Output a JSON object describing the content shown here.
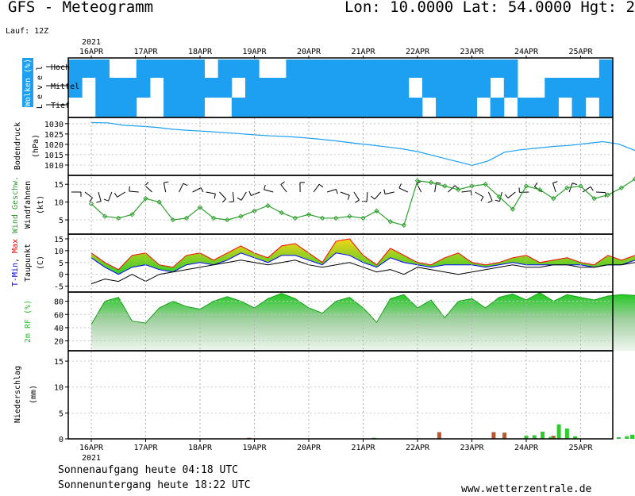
{
  "header": {
    "title": "GFS - Meteogramm",
    "coords": "Lon: 10.0000 Lat: 54.0000 Hgt: 2",
    "run": "Lauf: 12Z"
  },
  "footer": {
    "sunrise": "Sonnenaufgang heute 04:18 UTC",
    "sunset": "Sonnenuntergang heute 18:22 UTC",
    "site": "www.wetterzentrale.de"
  },
  "colors": {
    "cloud": "#1da0f2",
    "pressure_line": "#1da0f2",
    "wind_speed": "#2ca02c",
    "t_min": "#0000ff",
    "t_max": "#ff0000",
    "temp_fill_top": "#f5d318",
    "temp_fill_bottom": "#2ecc2e",
    "dewpoint": "#000000",
    "humidity": "#1ec81e",
    "precip_rain": "#2ecc2e",
    "precip_conv": "#c0552c"
  },
  "chart_data": [
    {
      "type": "heatmap",
      "label": "Wolken (%)",
      "sublabel": "L e v e l",
      "rows": [
        "Hoch",
        "Mittel",
        "Tief"
      ],
      "x": [
        "16APR",
        "16APR",
        "16APR",
        "16APR",
        "17APR",
        "17APR",
        "17APR",
        "17APR",
        "18APR",
        "18APR",
        "18APR",
        "18APR",
        "19APR",
        "19APR",
        "19APR",
        "19APR",
        "20APR",
        "20APR",
        "20APR",
        "20APR",
        "21APR",
        "21APR",
        "21APR",
        "21APR",
        "22APR",
        "22APR",
        "22APR",
        "22APR",
        "23APR",
        "23APR",
        "23APR",
        "23APR",
        "24APR",
        "24APR",
        "24APR",
        "24APR",
        "25APR",
        "25APR",
        "25APR",
        "25APR"
      ],
      "hoch": [
        1,
        1,
        1,
        0,
        0,
        1,
        1,
        1,
        1,
        1,
        0,
        1,
        1,
        1,
        0,
        0,
        1,
        1,
        1,
        1,
        1,
        1,
        1,
        1,
        1,
        1,
        1,
        1,
        1,
        1,
        1,
        1,
        1,
        0,
        0,
        0,
        0,
        0,
        0,
        1
      ],
      "mittel": [
        1,
        0,
        1,
        1,
        1,
        1,
        0,
        1,
        1,
        1,
        1,
        1,
        0,
        1,
        1,
        1,
        1,
        1,
        1,
        1,
        1,
        1,
        1,
        1,
        1,
        0,
        1,
        1,
        1,
        1,
        1,
        0,
        1,
        0,
        0,
        1,
        1,
        1,
        1,
        1
      ],
      "tief": [
        0,
        0,
        1,
        1,
        1,
        0,
        0,
        1,
        1,
        1,
        0,
        0,
        1,
        1,
        1,
        1,
        1,
        1,
        1,
        1,
        1,
        1,
        1,
        1,
        1,
        1,
        0,
        1,
        1,
        1,
        0,
        1,
        0,
        1,
        1,
        1,
        0,
        1,
        0,
        1
      ]
    },
    {
      "type": "line",
      "ylabel": "Bodendruck",
      "unit": "(hPa)",
      "ylim": [
        1005,
        1033
      ],
      "yticks": [
        1010,
        1015,
        1020,
        1025,
        1030
      ],
      "t": [
        0,
        0.3,
        0.6,
        0.9,
        1.2,
        1.5,
        1.8,
        2.1,
        2.4,
        2.7,
        3.0,
        3.3,
        3.6,
        3.9,
        4.2,
        4.5,
        4.8,
        5.1,
        5.4,
        5.7,
        6.0,
        6.3,
        6.6,
        6.9,
        7.0,
        7.3,
        7.6,
        7.9,
        8.2,
        8.5,
        8.8,
        9.1,
        9.4,
        9.7,
        10.0
      ],
      "values": [
        1030.5,
        1030.4,
        1029.2,
        1028.8,
        1028.2,
        1027.3,
        1026.7,
        1026.3,
        1025.8,
        1025.2,
        1024.6,
        1024.1,
        1023.8,
        1023.2,
        1022.5,
        1021.7,
        1020.7,
        1019.8,
        1018.9,
        1017.9,
        1016.5,
        1014.5,
        1012.5,
        1010.6,
        1009.8,
        1012.0,
        1016.2,
        1017.4,
        1018.2,
        1019.0,
        1019.5,
        1020.4,
        1021.3,
        1020.2,
        1017.0
      ]
    },
    {
      "type": "line",
      "ylabel": "Wind Geschw.",
      "ylabel2": "Windfahnen",
      "unit": "(kt)",
      "ylim": [
        1,
        17.5
      ],
      "yticks": [
        5,
        10,
        15
      ],
      "t": [
        0,
        0.25,
        0.5,
        0.75,
        1.0,
        1.25,
        1.5,
        1.75,
        2.0,
        2.25,
        2.5,
        2.75,
        3.0,
        3.25,
        3.5,
        3.75,
        4.0,
        4.25,
        4.5,
        4.75,
        5.0,
        5.25,
        5.5,
        5.75,
        6.0,
        6.25,
        6.5,
        6.75,
        7.0,
        7.25,
        7.5,
        7.75,
        8.0,
        8.25,
        8.5,
        8.75,
        9.0,
        9.25,
        9.5,
        9.75,
        10.0
      ],
      "values": [
        9.5,
        6.0,
        5.5,
        6.5,
        11.0,
        10.0,
        5.0,
        5.5,
        8.5,
        5.5,
        5.0,
        6.0,
        7.5,
        9.0,
        7.0,
        5.5,
        6.5,
        5.5,
        5.5,
        6.0,
        5.5,
        7.5,
        4.5,
        3.5,
        16.0,
        15.5,
        14.5,
        13.5,
        14.5,
        15.0,
        11.5,
        8.0,
        14.5,
        13.5,
        11.0,
        14.0,
        14.5,
        11.0,
        12.0,
        14.0,
        16.5
      ],
      "barbs": [
        10,
        10,
        12,
        11,
        10,
        8,
        7,
        8,
        9,
        11,
        12,
        12,
        10,
        9,
        8,
        8,
        7,
        6,
        6,
        8,
        10,
        12,
        14,
        15,
        14,
        13,
        12,
        11,
        10,
        10,
        11,
        12,
        13,
        14,
        15,
        14,
        13,
        12,
        13,
        15
      ]
    },
    {
      "type": "area",
      "ylabel": "T-Min, Max",
      "ylabel2": "Taupunkt",
      "unit": "(C)",
      "ylim": [
        -7.5,
        17
      ],
      "yticks": [
        -5,
        0,
        5,
        10,
        15
      ],
      "t": [
        0,
        0.25,
        0.5,
        0.75,
        1.0,
        1.25,
        1.5,
        1.75,
        2.0,
        2.25,
        2.5,
        2.75,
        3.0,
        3.25,
        3.5,
        3.75,
        4.0,
        4.25,
        4.5,
        4.75,
        5.0,
        5.25,
        5.5,
        5.75,
        6.0,
        6.25,
        6.5,
        6.75,
        7.0,
        7.25,
        7.5,
        7.75,
        8.0,
        8.25,
        8.5,
        8.75,
        9.0,
        9.25,
        9.5,
        9.75,
        10.0
      ],
      "t_max": [
        9,
        5,
        2,
        8,
        9,
        4,
        3,
        8,
        9,
        6,
        9,
        12,
        9,
        7,
        12,
        13,
        9,
        5,
        14,
        15,
        8,
        4,
        11,
        8,
        5,
        4,
        7,
        9,
        5,
        4,
        5,
        7,
        8,
        5,
        6,
        7,
        5,
        4,
        8,
        6,
        8
      ],
      "t_min": [
        7,
        3,
        0,
        3,
        4,
        2,
        1,
        4,
        5,
        4,
        6,
        9,
        7,
        5,
        8,
        8,
        6,
        4,
        9,
        8,
        5,
        3,
        7,
        5,
        4,
        3,
        4,
        4,
        4,
        3,
        4,
        5,
        4,
        4,
        4,
        4,
        4,
        3,
        4,
        4,
        6
      ],
      "dewpoint": [
        -4,
        -2,
        -3,
        0,
        -3,
        0,
        1,
        2,
        3,
        4,
        5,
        6,
        5,
        4,
        5,
        6,
        4,
        3,
        4,
        5,
        3,
        1,
        2,
        0,
        3,
        2,
        1,
        0,
        1,
        2,
        3,
        4,
        3,
        3,
        4,
        4,
        3,
        3,
        4,
        4,
        5
      ]
    },
    {
      "type": "area",
      "ylabel": "2m RF (%)",
      "ylim": [
        5,
        94
      ],
      "yticks": [
        20,
        40,
        60,
        80
      ],
      "t": [
        0,
        0.25,
        0.5,
        0.75,
        1.0,
        1.25,
        1.5,
        1.75,
        2.0,
        2.25,
        2.5,
        2.75,
        3.0,
        3.25,
        3.5,
        3.75,
        4.0,
        4.25,
        4.5,
        4.75,
        5.0,
        5.25,
        5.5,
        5.75,
        6.0,
        6.25,
        6.5,
        6.75,
        7.0,
        7.25,
        7.5,
        7.75,
        8.0,
        8.25,
        8.5,
        8.75,
        9.0,
        9.25,
        9.5,
        9.75,
        10.0
      ],
      "values": [
        45,
        80,
        86,
        50,
        47,
        70,
        80,
        72,
        68,
        80,
        87,
        80,
        70,
        84,
        92,
        84,
        70,
        62,
        80,
        86,
        70,
        48,
        84,
        90,
        70,
        82,
        55,
        80,
        84,
        70,
        86,
        91,
        82,
        93,
        80,
        90,
        86,
        82,
        88,
        90,
        89
      ]
    },
    {
      "type": "bar",
      "ylabel": "Niederschlag",
      "unit": "(mm)",
      "ylim": [
        0,
        17
      ],
      "yticks": [
        0,
        5,
        10,
        15
      ],
      "rain": [
        [
          5.2,
          0.2
        ],
        [
          7.6,
          0.1
        ],
        [
          8.0,
          0.6
        ],
        [
          8.15,
          0.7
        ],
        [
          8.3,
          1.4
        ],
        [
          8.45,
          0.4
        ],
        [
          8.6,
          2.8
        ],
        [
          8.75,
          2.0
        ],
        [
          8.9,
          0.5
        ],
        [
          9.7,
          0.3
        ],
        [
          9.85,
          0.5
        ],
        [
          9.95,
          0.8
        ]
      ],
      "conv": [
        [
          2.9,
          0.2
        ],
        [
          6.4,
          1.3
        ],
        [
          7.4,
          1.3
        ],
        [
          7.6,
          1.2
        ],
        [
          8.5,
          0.6
        ]
      ]
    }
  ],
  "timeline": {
    "start_year": "2021",
    "days": [
      "16APR",
      "17APR",
      "18APR",
      "19APR",
      "20APR",
      "21APR",
      "22APR",
      "23APR",
      "24APR",
      "25APR"
    ]
  }
}
